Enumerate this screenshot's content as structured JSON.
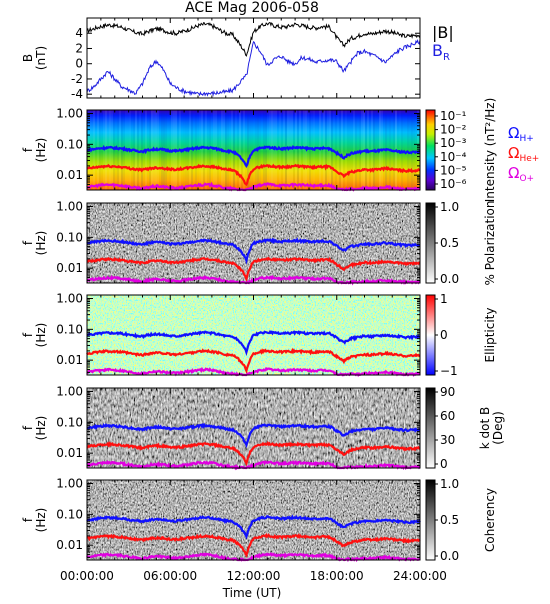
{
  "chart_data": {
    "type": "line",
    "title": "ACE Mag 2006-058",
    "xlabel": "Time (UT)",
    "x_ticks": [
      "00:00:00",
      "06:00:00",
      "12:00:00",
      "18:00:00",
      "24:00:00"
    ],
    "xlim_hours": [
      0,
      24
    ],
    "colors": {
      "B": "#000000",
      "BR": "#1f1fe0",
      "H": "#1010ff",
      "He": "#ff1010",
      "O": "#e000e0"
    },
    "panels": [
      {
        "id": "b",
        "ylabel_top": "B",
        "ylabel_bottom": "(nT)",
        "ylim": [
          -4.5,
          6
        ],
        "y_ticks": [
          "4",
          "2",
          "0",
          "-2",
          "-4"
        ],
        "y_tick_values": [
          4,
          2,
          0,
          -2,
          -4
        ],
        "legend": {
          "magB": "|B|",
          "br_main": "B",
          "br_sub": "R"
        },
        "series": [
          {
            "name": "|B|",
            "x": [
              0,
              0.5,
              1,
              1.5,
              2,
              2.5,
              3,
              3.5,
              4,
              4.5,
              5,
              5.5,
              6,
              6.5,
              7,
              7.5,
              8,
              8.5,
              9,
              9.5,
              10,
              10.5,
              11,
              11.5,
              12,
              12.5,
              13,
              13.5,
              14,
              14.5,
              15,
              15.5,
              16,
              16.5,
              17,
              17.5,
              18,
              18.5,
              19,
              19.5,
              20,
              20.5,
              21,
              21.5,
              22,
              22.5,
              23,
              23.5,
              24
            ],
            "values": [
              4.3,
              4.6,
              4.9,
              5.1,
              5.0,
              4.8,
              4.4,
              4.1,
              3.9,
              4.3,
              4.6,
              4.4,
              4.1,
              4.0,
              4.3,
              4.6,
              5.0,
              5.2,
              5.0,
              4.5,
              4.0,
              3.8,
              2.6,
              1.2,
              4.2,
              4.9,
              5.3,
              5.0,
              4.8,
              4.9,
              5.2,
              5.0,
              4.8,
              4.7,
              4.9,
              4.8,
              3.4,
              2.4,
              3.3,
              3.6,
              4.0,
              3.9,
              4.1,
              4.3,
              4.1,
              3.8,
              3.6,
              3.7,
              3.8
            ]
          },
          {
            "name": "B_R",
            "x": [
              0,
              0.5,
              1,
              1.5,
              2,
              2.5,
              3,
              3.5,
              4,
              4.5,
              5,
              5.5,
              6,
              6.5,
              7,
              7.5,
              8,
              8.5,
              9,
              9.5,
              10,
              10.5,
              11,
              11.5,
              12,
              12.5,
              13,
              13.5,
              14,
              14.5,
              15,
              15.5,
              16,
              16.5,
              17,
              17.5,
              18,
              18.5,
              19,
              19.5,
              20,
              20.5,
              21,
              21.5,
              22,
              22.5,
              23,
              23.5,
              24
            ],
            "values": [
              -3.6,
              -3.0,
              -2.0,
              -1.0,
              -2.0,
              -3.0,
              -3.4,
              -3.9,
              -2.6,
              -0.6,
              0.4,
              -0.8,
              -2.6,
              -3.2,
              -3.6,
              -3.8,
              -4.0,
              -3.9,
              -3.9,
              -3.8,
              -3.7,
              -3.5,
              -2.5,
              -1.5,
              2.8,
              1.6,
              -0.2,
              0.6,
              1.0,
              0.3,
              0.0,
              0.8,
              0.6,
              0.2,
              0.4,
              0.5,
              0.3,
              -1.0,
              0.2,
              1.4,
              1.6,
              1.2,
              0.8,
              0.2,
              1.0,
              1.8,
              2.2,
              2.6,
              2.9
            ]
          }
        ]
      },
      {
        "id": "intensity",
        "ylabel_top": "f",
        "ylabel_bottom": "(Hz)",
        "colorbar_label": "Intensity (nT²/Hz)",
        "colorbar_ticks": [
          "10⁻¹",
          "10⁻²",
          "10⁻³",
          "10⁻⁴",
          "10⁻⁵",
          "10⁻⁶"
        ],
        "colormap": "rainbow",
        "legend": {
          "h_main": "Ω",
          "h_sub": "H+",
          "he_main": "Ω",
          "he_sub": "He+",
          "o_main": "Ω",
          "o_sub": "O+"
        }
      },
      {
        "id": "polarization",
        "ylabel_top": "f",
        "ylabel_bottom": "(Hz)",
        "colorbar_label": "% Polarization",
        "colorbar_ticks": [
          "1.0",
          "0.5",
          "0.0"
        ],
        "colormap": "gray"
      },
      {
        "id": "ellipticity",
        "ylabel_top": "f",
        "ylabel_bottom": "(Hz)",
        "colorbar_label": "Ellipticity",
        "colorbar_ticks": [
          "1",
          "0",
          "−1"
        ],
        "colormap": "bwr"
      },
      {
        "id": "kdotb",
        "ylabel_top": "f",
        "ylabel_bottom": "(Hz)",
        "colorbar_label": "k dot B",
        "colorbar_label2": "(Deg)",
        "colorbar_ticks": [
          "90",
          "60",
          "30",
          "0"
        ],
        "colormap": "gray"
      },
      {
        "id": "coherency",
        "ylabel_top": "f",
        "ylabel_bottom": "(Hz)",
        "colorbar_label": "Coherency",
        "colorbar_ticks": [
          "1.0",
          "0.5",
          "0.0"
        ],
        "colormap": "gray"
      }
    ],
    "frequency_axis": {
      "scale": "log",
      "ylim": [
        0.0033,
        1.3
      ],
      "y_ticks": [
        "1.00",
        "0.10",
        "0.01"
      ],
      "y_tick_values": [
        1.0,
        0.1,
        0.01
      ]
    },
    "gyrofrequencies": {
      "x": [
        0,
        0.5,
        1,
        1.5,
        2,
        2.5,
        3,
        3.5,
        4,
        4.5,
        5,
        5.5,
        6,
        6.5,
        7,
        7.5,
        8,
        8.5,
        9,
        9.5,
        10,
        10.5,
        11,
        11.5,
        12,
        12.5,
        13,
        13.5,
        14,
        14.5,
        15,
        15.5,
        16,
        16.5,
        17,
        17.5,
        18,
        18.5,
        19,
        19.5,
        20,
        20.5,
        21,
        21.5,
        22,
        22.5,
        23,
        23.5,
        24
      ],
      "H+": [
        0.066,
        0.07,
        0.075,
        0.078,
        0.076,
        0.073,
        0.067,
        0.062,
        0.059,
        0.066,
        0.07,
        0.067,
        0.062,
        0.061,
        0.066,
        0.07,
        0.076,
        0.079,
        0.076,
        0.069,
        0.061,
        0.058,
        0.04,
        0.018,
        0.064,
        0.075,
        0.081,
        0.076,
        0.073,
        0.075,
        0.079,
        0.076,
        0.073,
        0.072,
        0.075,
        0.073,
        0.052,
        0.037,
        0.05,
        0.055,
        0.061,
        0.059,
        0.062,
        0.066,
        0.062,
        0.058,
        0.055,
        0.056,
        0.058
      ],
      "He+": [
        0.0165,
        0.0175,
        0.0188,
        0.0195,
        0.019,
        0.0183,
        0.0168,
        0.0155,
        0.0148,
        0.0165,
        0.0175,
        0.0168,
        0.0155,
        0.0153,
        0.0165,
        0.0175,
        0.019,
        0.0198,
        0.019,
        0.0173,
        0.0153,
        0.0145,
        0.01,
        0.0045,
        0.016,
        0.0188,
        0.0203,
        0.019,
        0.0183,
        0.0188,
        0.0198,
        0.019,
        0.0183,
        0.018,
        0.0188,
        0.0183,
        0.013,
        0.0093,
        0.0125,
        0.0138,
        0.0153,
        0.0148,
        0.0155,
        0.0165,
        0.0155,
        0.0145,
        0.0138,
        0.014,
        0.0145
      ],
      "O+": [
        0.0041,
        0.0044,
        0.0047,
        0.0049,
        0.0048,
        0.0046,
        0.0042,
        0.0039,
        0.0037,
        0.0041,
        0.0044,
        0.0042,
        0.0039,
        0.0038,
        0.0041,
        0.0044,
        0.0048,
        0.0049,
        0.0048,
        0.0043,
        0.0038,
        0.0036,
        0.0034,
        0.0033,
        0.004,
        0.0047,
        0.0051,
        0.0048,
        0.0046,
        0.0047,
        0.0049,
        0.0048,
        0.0046,
        0.0045,
        0.0047,
        0.0046,
        0.0035,
        0.0034,
        0.0035,
        0.0035,
        0.0038,
        0.0037,
        0.0039,
        0.0041,
        0.0039,
        0.0036,
        0.0035,
        0.0035,
        0.0036
      ]
    }
  }
}
